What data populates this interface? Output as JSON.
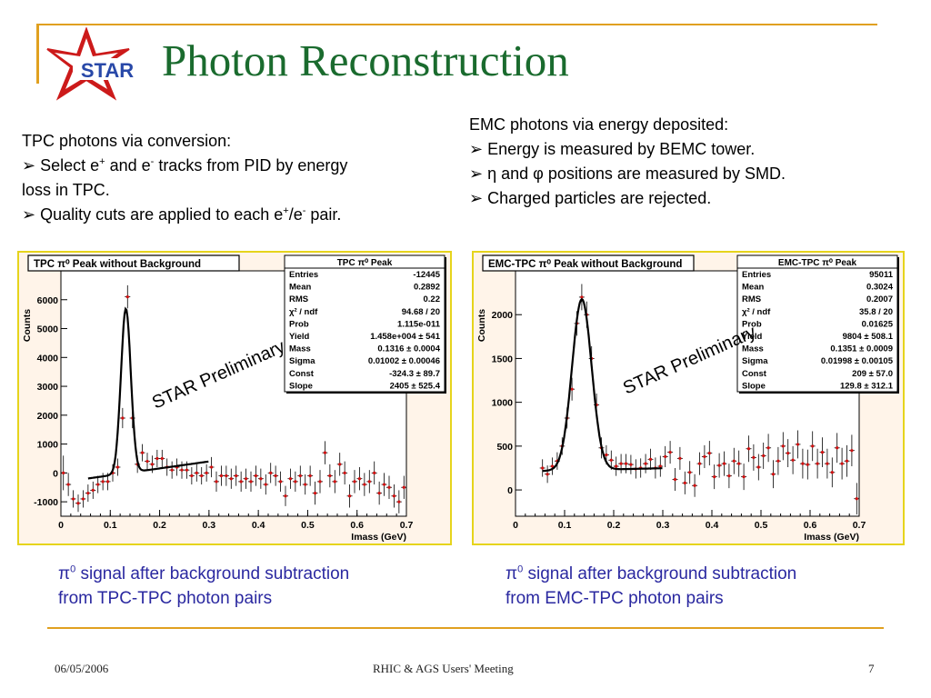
{
  "slide": {
    "title": "Photon Reconstruction",
    "logo_text": "STAR"
  },
  "left_text": {
    "line1": "TPC photons via conversion:",
    "line2_a": "Select e",
    "line2_sup1": "+",
    "line2_b": " and e",
    "line2_sup2": "-",
    "line2_c": " tracks from PID by energy",
    "line3": "loss in TPC.",
    "line4_a": "Quality cuts are applied to each e",
    "line4_sup1": "+",
    "line4_b": "/e",
    "line4_sup2": "-",
    "line4_c": " pair."
  },
  "right_text": {
    "line1": "EMC photons via energy deposited:",
    "line2": "Energy is measured by BEMC tower.",
    "line3": "η and φ positions are measured by SMD.",
    "line4": "Charged particles are rejected."
  },
  "bullet": "➢",
  "captions": {
    "left_line1_sym": "π",
    "left_line1_sup": "0",
    "left_line1_rest": " signal after background subtraction",
    "left_line2": "from TPC-TPC photon pairs",
    "right_line1_sym": "π",
    "right_line1_sup": "0",
    "right_line1_rest": " signal after background subtraction",
    "right_line2": "from EMC-TPC photon pairs"
  },
  "footer": {
    "date": "06/05/2006",
    "meeting": "RHIC & AGS Users' Meeting",
    "page": "7"
  },
  "colors": {
    "title": "#1a6b2e",
    "accent_line": "#e0a020",
    "caption": "#2a28a0",
    "plot_bg": "#fff4e9",
    "marker": "#d01010"
  },
  "chart_data": [
    {
      "type": "scatter",
      "title": "TPC π⁰ Peak without Background",
      "xlabel": "Imass (GeV)",
      "ylabel": "Counts",
      "xlim": [
        0,
        0.7
      ],
      "ylim": [
        -1500,
        7000
      ],
      "xticks": [
        "0",
        "0.1",
        "0.2",
        "0.3",
        "0.4",
        "0.5",
        "0.6",
        "0.7"
      ],
      "yticks": [
        "-1000",
        "0",
        "1000",
        "2000",
        "3000",
        "4000",
        "5000",
        "6000"
      ],
      "watermark": "STAR Preliminary",
      "stats": {
        "title": "TPC π⁰ Peak",
        "rows": [
          [
            "Entries",
            "-12445"
          ],
          [
            "Mean",
            "0.2892"
          ],
          [
            "RMS",
            "0.22"
          ],
          [
            "χ² / ndf",
            "94.68 / 20"
          ],
          [
            "Prob",
            "1.115e-011"
          ],
          [
            "Yield",
            "1.458e+004 ± 541"
          ],
          [
            "Mass",
            "0.1316 ± 0.0004"
          ],
          [
            "Sigma",
            "0.01002 ± 0.00046"
          ],
          [
            "Const",
            "-324.3 ± 89.7"
          ],
          [
            "Slope",
            "2405 ± 525.4"
          ]
        ]
      },
      "points": [
        [
          0.005,
          0,
          600
        ],
        [
          0.015,
          -400,
          400
        ],
        [
          0.025,
          -900,
          300
        ],
        [
          0.035,
          -1050,
          300
        ],
        [
          0.045,
          -900,
          300
        ],
        [
          0.055,
          -700,
          300
        ],
        [
          0.065,
          -600,
          300
        ],
        [
          0.075,
          -400,
          300
        ],
        [
          0.085,
          -300,
          300
        ],
        [
          0.095,
          -300,
          300
        ],
        [
          0.105,
          0,
          300
        ],
        [
          0.115,
          200,
          300
        ],
        [
          0.125,
          1900,
          350
        ],
        [
          0.135,
          6100,
          400
        ],
        [
          0.145,
          1900,
          350
        ],
        [
          0.155,
          300,
          300
        ],
        [
          0.165,
          700,
          300
        ],
        [
          0.175,
          400,
          300
        ],
        [
          0.185,
          300,
          300
        ],
        [
          0.195,
          500,
          300
        ],
        [
          0.205,
          500,
          300
        ],
        [
          0.215,
          200,
          300
        ],
        [
          0.225,
          100,
          300
        ],
        [
          0.235,
          200,
          300
        ],
        [
          0.245,
          100,
          300
        ],
        [
          0.255,
          100,
          300
        ],
        [
          0.265,
          -100,
          300
        ],
        [
          0.275,
          0,
          300
        ],
        [
          0.285,
          -100,
          300
        ],
        [
          0.295,
          0,
          300
        ],
        [
          0.305,
          200,
          350
        ],
        [
          0.315,
          -300,
          350
        ],
        [
          0.325,
          -100,
          350
        ],
        [
          0.335,
          -100,
          350
        ],
        [
          0.345,
          -200,
          350
        ],
        [
          0.355,
          -100,
          350
        ],
        [
          0.365,
          -300,
          350
        ],
        [
          0.375,
          -200,
          350
        ],
        [
          0.385,
          -300,
          350
        ],
        [
          0.395,
          -100,
          350
        ],
        [
          0.405,
          -200,
          350
        ],
        [
          0.415,
          -400,
          350
        ],
        [
          0.425,
          0,
          350
        ],
        [
          0.435,
          -100,
          350
        ],
        [
          0.445,
          -300,
          350
        ],
        [
          0.455,
          -800,
          350
        ],
        [
          0.465,
          -200,
          350
        ],
        [
          0.475,
          -300,
          350
        ],
        [
          0.485,
          -100,
          350
        ],
        [
          0.495,
          -400,
          350
        ],
        [
          0.505,
          -100,
          350
        ],
        [
          0.515,
          -700,
          400
        ],
        [
          0.525,
          -300,
          400
        ],
        [
          0.535,
          700,
          400
        ],
        [
          0.545,
          -100,
          400
        ],
        [
          0.555,
          -300,
          400
        ],
        [
          0.565,
          300,
          400
        ],
        [
          0.575,
          0,
          400
        ],
        [
          0.585,
          -800,
          400
        ],
        [
          0.595,
          -300,
          400
        ],
        [
          0.605,
          -200,
          400
        ],
        [
          0.615,
          -400,
          400
        ],
        [
          0.625,
          -300,
          400
        ],
        [
          0.635,
          0,
          400
        ],
        [
          0.645,
          -700,
          400
        ],
        [
          0.655,
          -400,
          400
        ],
        [
          0.665,
          -500,
          400
        ],
        [
          0.675,
          -800,
          400
        ],
        [
          0.685,
          -1000,
          400
        ],
        [
          0.695,
          -500,
          400
        ]
      ],
      "fit": {
        "const": -324.3,
        "slope": 2405,
        "mass": 0.1316,
        "sigma": 0.01002,
        "amp": 5700,
        "xrange": [
          0.055,
          0.3
        ]
      }
    },
    {
      "type": "scatter",
      "title": "EMC-TPC π⁰ Peak without Background",
      "xlabel": "Imass (GeV)",
      "ylabel": "Counts",
      "xlim": [
        0,
        0.7
      ],
      "ylim": [
        -300,
        2500
      ],
      "xticks": [
        "0",
        "0.1",
        "0.2",
        "0.3",
        "0.4",
        "0.5",
        "0.6",
        "0.7"
      ],
      "yticks": [
        "0",
        "500",
        "1000",
        "1500",
        "2000"
      ],
      "watermark": "STAR Preliminary",
      "stats": {
        "title": "EMC-TPC π⁰ Peak",
        "rows": [
          [
            "Entries",
            "95011"
          ],
          [
            "Mean",
            "0.3024"
          ],
          [
            "RMS",
            "0.2007"
          ],
          [
            "χ² / ndf",
            "35.8 / 20"
          ],
          [
            "Prob",
            "0.01625"
          ],
          [
            "Yield",
            "9804 ± 508.1"
          ],
          [
            "Mass",
            "0.1351 ± 0.0009"
          ],
          [
            "Sigma",
            "0.01998 ± 0.00105"
          ],
          [
            "Const",
            "209 ± 57.0"
          ],
          [
            "Slope",
            "129.8 ± 312.1"
          ]
        ]
      },
      "points": [
        [
          0.055,
          250,
          100
        ],
        [
          0.065,
          180,
          100
        ],
        [
          0.075,
          270,
          100
        ],
        [
          0.085,
          330,
          100
        ],
        [
          0.095,
          500,
          100
        ],
        [
          0.105,
          820,
          120
        ],
        [
          0.115,
          1150,
          130
        ],
        [
          0.125,
          1900,
          140
        ],
        [
          0.135,
          2200,
          150
        ],
        [
          0.145,
          2000,
          150
        ],
        [
          0.155,
          1500,
          140
        ],
        [
          0.165,
          970,
          130
        ],
        [
          0.175,
          480,
          120
        ],
        [
          0.185,
          400,
          110
        ],
        [
          0.195,
          340,
          110
        ],
        [
          0.205,
          270,
          110
        ],
        [
          0.215,
          300,
          110
        ],
        [
          0.225,
          300,
          110
        ],
        [
          0.235,
          290,
          110
        ],
        [
          0.245,
          240,
          110
        ],
        [
          0.255,
          250,
          110
        ],
        [
          0.265,
          300,
          110
        ],
        [
          0.275,
          350,
          120
        ],
        [
          0.285,
          250,
          120
        ],
        [
          0.295,
          270,
          120
        ],
        [
          0.305,
          380,
          120
        ],
        [
          0.315,
          430,
          130
        ],
        [
          0.325,
          120,
          130
        ],
        [
          0.335,
          360,
          130
        ],
        [
          0.345,
          80,
          130
        ],
        [
          0.355,
          200,
          130
        ],
        [
          0.365,
          50,
          130
        ],
        [
          0.375,
          300,
          130
        ],
        [
          0.385,
          380,
          130
        ],
        [
          0.395,
          420,
          140
        ],
        [
          0.405,
          150,
          140
        ],
        [
          0.415,
          280,
          140
        ],
        [
          0.425,
          300,
          140
        ],
        [
          0.435,
          160,
          140
        ],
        [
          0.445,
          330,
          150
        ],
        [
          0.455,
          300,
          150
        ],
        [
          0.465,
          150,
          150
        ],
        [
          0.475,
          470,
          150
        ],
        [
          0.485,
          370,
          150
        ],
        [
          0.495,
          260,
          150
        ],
        [
          0.505,
          390,
          150
        ],
        [
          0.515,
          480,
          160
        ],
        [
          0.525,
          180,
          160
        ],
        [
          0.535,
          330,
          160
        ],
        [
          0.545,
          500,
          160
        ],
        [
          0.555,
          420,
          160
        ],
        [
          0.565,
          340,
          160
        ],
        [
          0.575,
          520,
          160
        ],
        [
          0.585,
          300,
          170
        ],
        [
          0.595,
          290,
          170
        ],
        [
          0.605,
          500,
          170
        ],
        [
          0.615,
          300,
          170
        ],
        [
          0.625,
          430,
          170
        ],
        [
          0.635,
          300,
          170
        ],
        [
          0.645,
          200,
          170
        ],
        [
          0.655,
          480,
          170
        ],
        [
          0.665,
          300,
          180
        ],
        [
          0.675,
          330,
          180
        ],
        [
          0.685,
          450,
          180
        ],
        [
          0.695,
          -100,
          180
        ]
      ],
      "fit": {
        "const": 209,
        "slope": 129.8,
        "mass": 0.1351,
        "sigma": 0.01998,
        "amp": 1950,
        "xrange": [
          0.055,
          0.3
        ]
      }
    }
  ]
}
